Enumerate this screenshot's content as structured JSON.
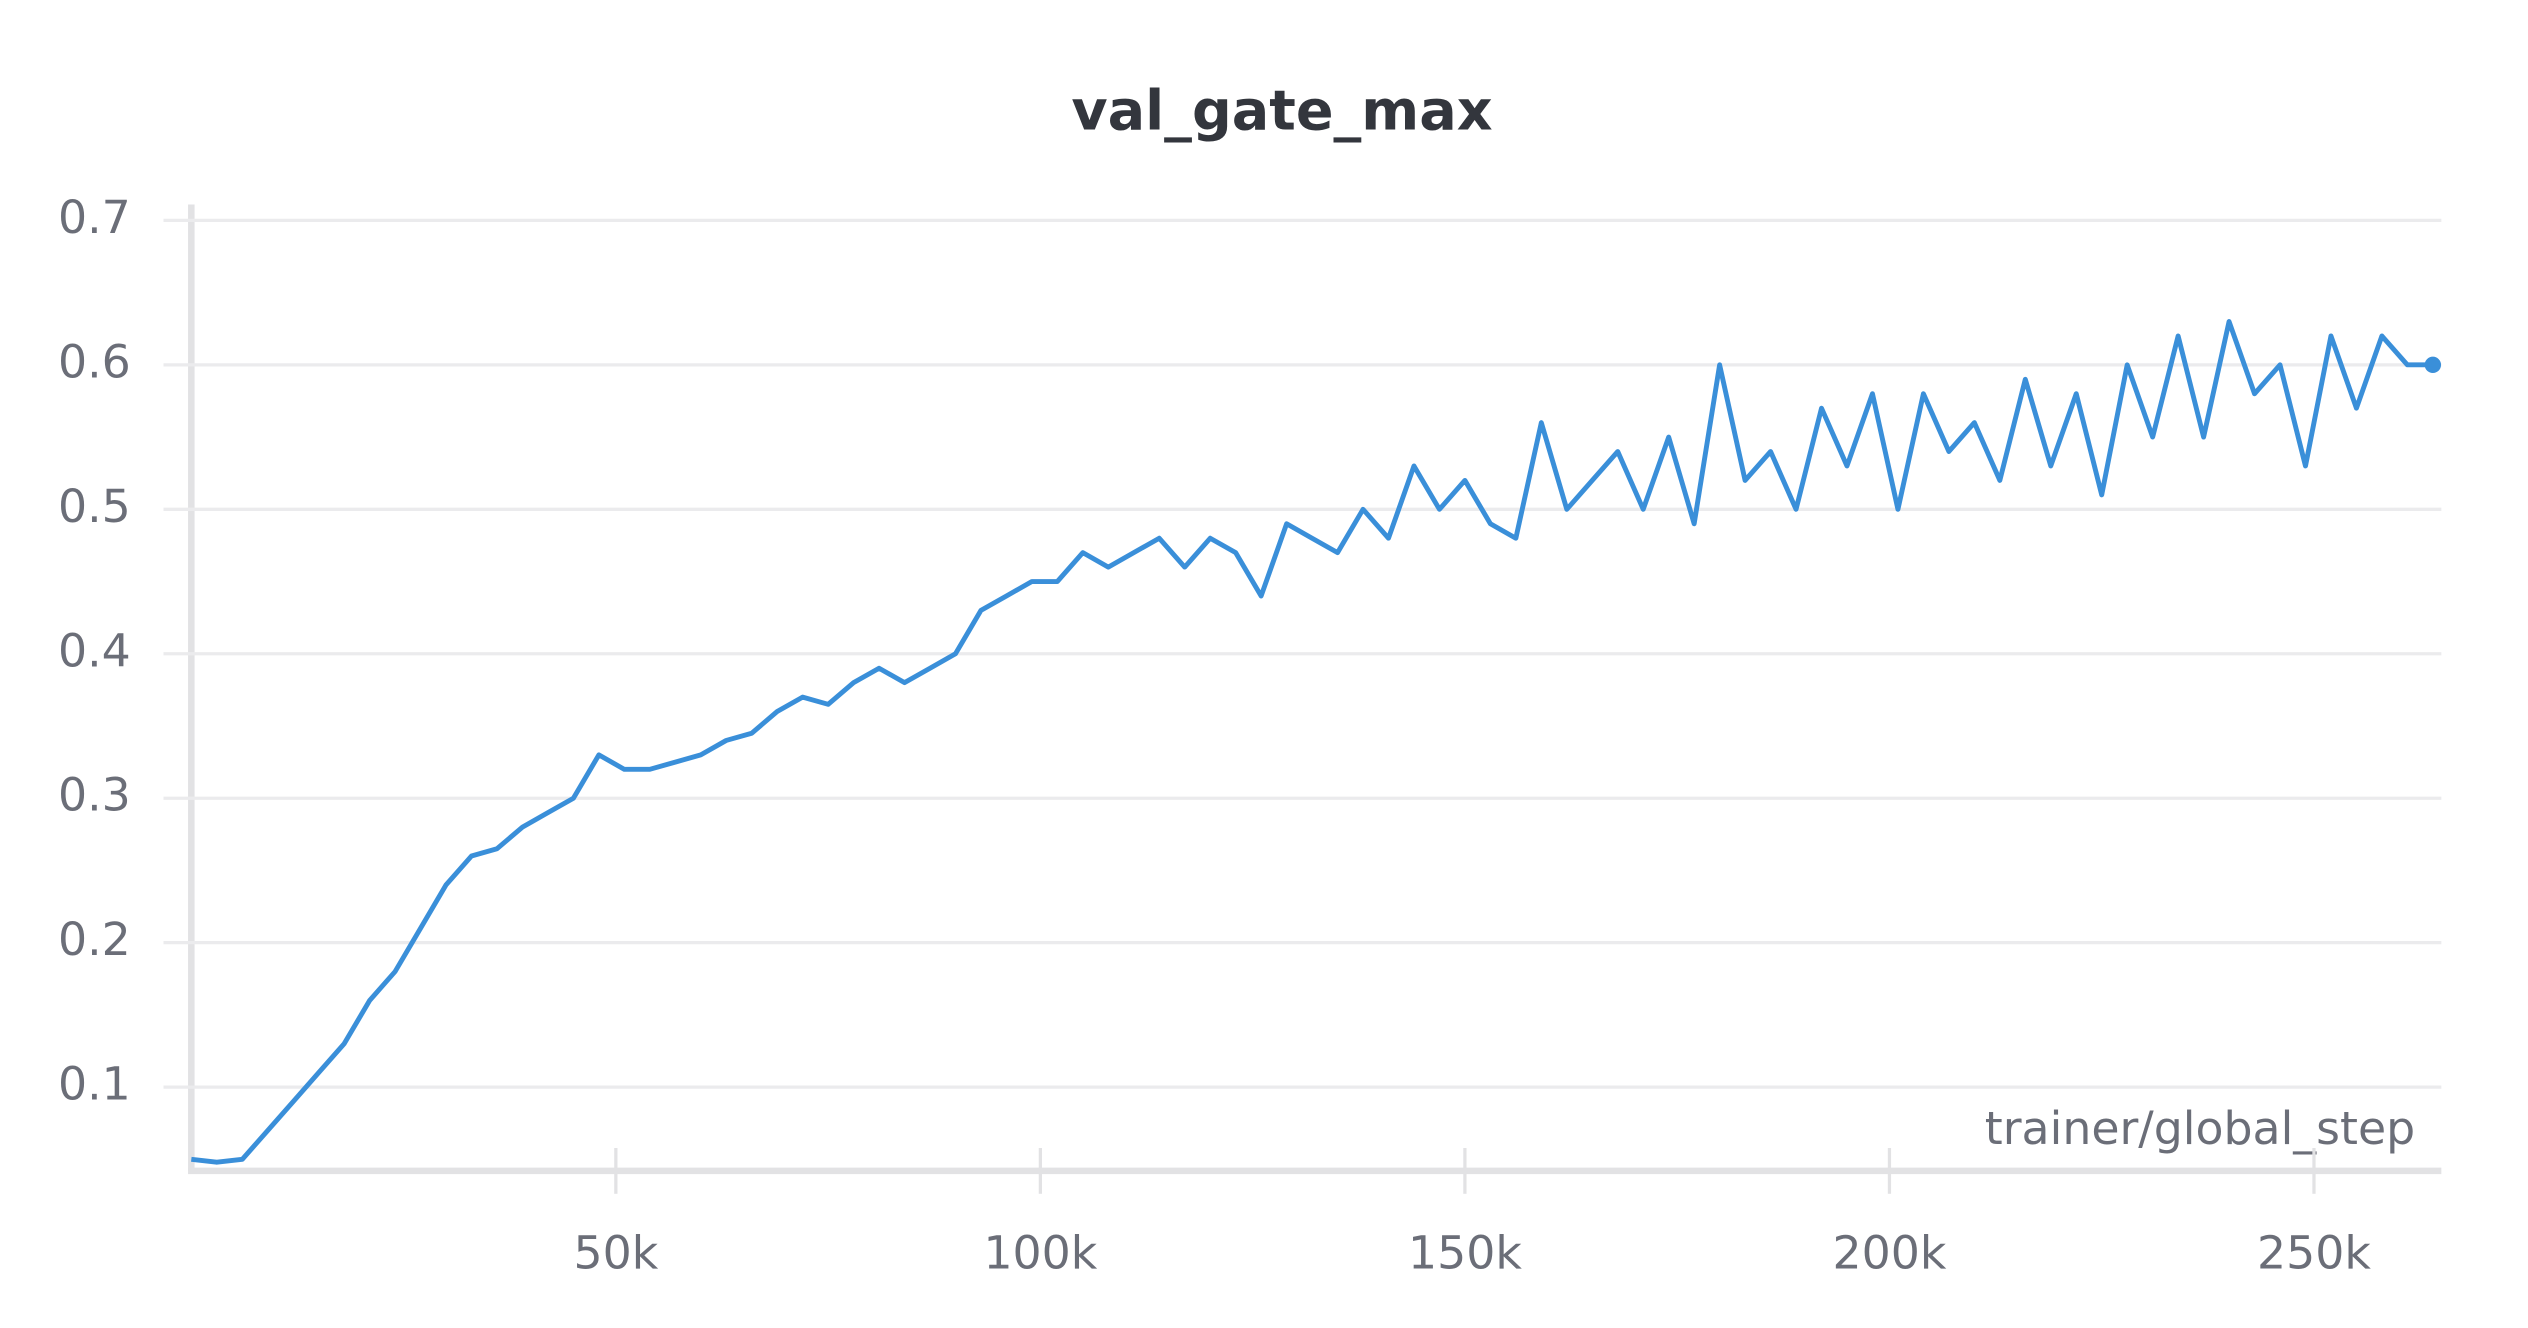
{
  "chart_data": {
    "type": "line",
    "title": "val_gate_max",
    "x_label": "trainer/global_step",
    "x": [
      0,
      3000,
      6000,
      9000,
      12000,
      15000,
      18000,
      21000,
      24000,
      27000,
      30000,
      33000,
      36000,
      39000,
      42000,
      45000,
      48000,
      51000,
      54000,
      57000,
      60000,
      63000,
      66000,
      69000,
      72000,
      75000,
      78000,
      81000,
      84000,
      87000,
      90000,
      93000,
      96000,
      99000,
      102000,
      105000,
      108000,
      111000,
      114000,
      117000,
      120000,
      123000,
      126000,
      129000,
      132000,
      135000,
      138000,
      141000,
      144000,
      147000,
      150000,
      153000,
      156000,
      159000,
      162000,
      165000,
      168000,
      171000,
      174000,
      177000,
      180000,
      183000,
      186000,
      189000,
      192000,
      195000,
      198000,
      201000,
      204000,
      207000,
      210000,
      213000,
      216000,
      219000,
      222000,
      225000,
      228000,
      231000,
      234000,
      237000,
      240000,
      243000,
      246000,
      249000,
      252000,
      255000,
      258000,
      261000,
      264000
    ],
    "series": [
      {
        "name": "val_gate_max",
        "color": "#3a8fd9",
        "values": [
          0.05,
          0.048,
          0.05,
          0.07,
          0.09,
          0.11,
          0.13,
          0.16,
          0.18,
          0.21,
          0.24,
          0.26,
          0.265,
          0.28,
          0.29,
          0.3,
          0.33,
          0.32,
          0.32,
          0.325,
          0.33,
          0.34,
          0.345,
          0.36,
          0.37,
          0.365,
          0.38,
          0.39,
          0.38,
          0.39,
          0.4,
          0.43,
          0.44,
          0.45,
          0.45,
          0.47,
          0.46,
          0.47,
          0.48,
          0.46,
          0.48,
          0.47,
          0.44,
          0.49,
          0.48,
          0.47,
          0.5,
          0.48,
          0.53,
          0.5,
          0.52,
          0.49,
          0.48,
          0.56,
          0.5,
          0.52,
          0.54,
          0.5,
          0.55,
          0.49,
          0.6,
          0.52,
          0.54,
          0.5,
          0.57,
          0.53,
          0.58,
          0.5,
          0.58,
          0.54,
          0.56,
          0.52,
          0.59,
          0.53,
          0.58,
          0.51,
          0.6,
          0.55,
          0.62,
          0.55,
          0.63,
          0.58,
          0.6,
          0.53,
          0.62,
          0.57,
          0.62,
          0.6,
          0.6
        ]
      }
    ],
    "xlim": [
      0,
      265000
    ],
    "ylim": [
      0.042,
      0.711
    ],
    "xticks": [
      {
        "value": 50000,
        "label": "50k"
      },
      {
        "value": 100000,
        "label": "100k"
      },
      {
        "value": 150000,
        "label": "150k"
      },
      {
        "value": 200000,
        "label": "200k"
      },
      {
        "value": 250000,
        "label": "250k"
      }
    ],
    "yticks": [
      0.1,
      0.2,
      0.3,
      0.4,
      0.5,
      0.6,
      0.7
    ],
    "grid": true
  }
}
